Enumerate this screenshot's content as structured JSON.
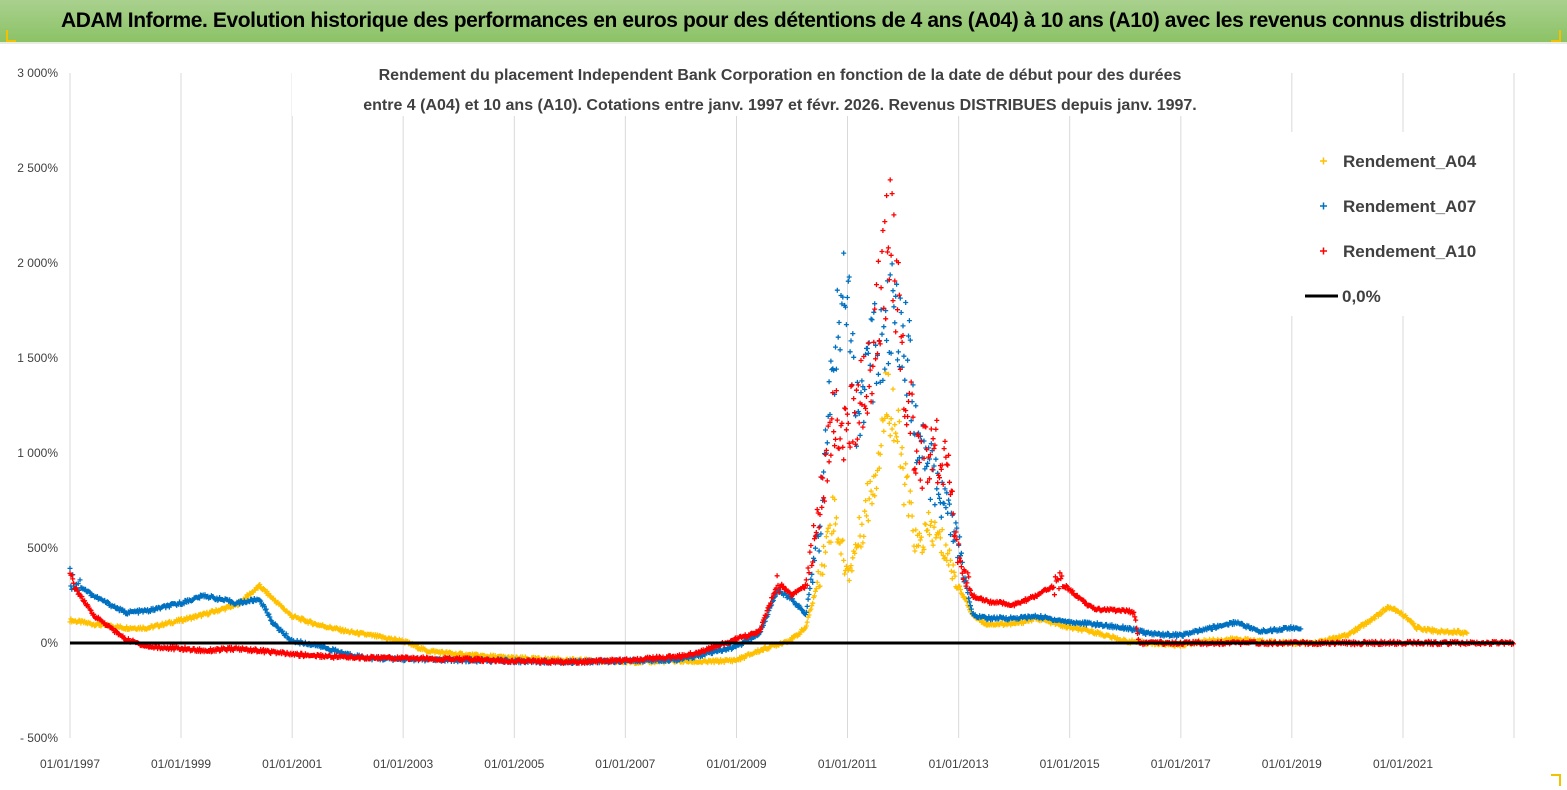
{
  "header": {
    "banner": "ADAM Informe. Evolution historique des performances en euros pour des détentions de 4 ans (A04) à 10 ans (A10) avec les revenus connus distribués"
  },
  "chart_data": {
    "type": "scatter",
    "title_lines": [
      "Rendement du placement Independent Bank Corporation en fonction de la date de début pour des durées",
      "entre 4 (A04) et 10 ans (A10).  Cotations entre janv. 1997 et févr. 2026. Revenus DISTRIBUES depuis janv. 1997."
    ],
    "x_range": [
      "1997-01-01",
      "2023-01-01"
    ],
    "x_ticks": [
      "01/01/1997",
      "01/01/1999",
      "01/01/2001",
      "01/01/2003",
      "01/01/2005",
      "01/01/2007",
      "01/01/2009",
      "01/01/2011",
      "01/01/2013",
      "01/01/2015",
      "01/01/2017",
      "01/01/2019",
      "01/01/2021"
    ],
    "ylim": [
      -500,
      3000
    ],
    "y_ticks": [
      -500,
      0,
      500,
      1000,
      1500,
      2000,
      2500,
      3000
    ],
    "y_tick_labels": [
      "- 500%",
      "0%",
      "500%",
      "1 000%",
      "1 500%",
      "2 000%",
      "2 500%",
      "3 000%"
    ],
    "grid": "vertical",
    "legend_position": "top-right",
    "series": [
      {
        "name": "Rendement_A04",
        "color": "#ffc000",
        "marker": "plus",
        "points": [
          [
            "1997-01-01",
            120
          ],
          [
            "1997-06-01",
            100
          ],
          [
            "1998-01-01",
            80
          ],
          [
            "1998-06-01",
            80
          ],
          [
            "1999-01-01",
            120
          ],
          [
            "1999-06-01",
            150
          ],
          [
            "2000-01-01",
            200
          ],
          [
            "2000-06-01",
            300
          ],
          [
            "2000-09-01",
            230
          ],
          [
            "2001-01-01",
            140
          ],
          [
            "2001-06-01",
            100
          ],
          [
            "2002-01-01",
            60
          ],
          [
            "2002-06-01",
            40
          ],
          [
            "2003-01-01",
            10
          ],
          [
            "2003-06-01",
            -40
          ],
          [
            "2004-01-01",
            -60
          ],
          [
            "2005-01-01",
            -80
          ],
          [
            "2006-01-01",
            -90
          ],
          [
            "2007-01-01",
            -100
          ],
          [
            "2008-01-01",
            -95
          ],
          [
            "2008-06-01",
            -100
          ],
          [
            "2009-01-01",
            -90
          ],
          [
            "2009-06-01",
            -40
          ],
          [
            "2010-01-01",
            20
          ],
          [
            "2010-04-01",
            80
          ],
          [
            "2010-07-01",
            350
          ],
          [
            "2010-10-01",
            700
          ],
          [
            "2011-01-01",
            350
          ],
          [
            "2011-04-01",
            600
          ],
          [
            "2011-07-01",
            900
          ],
          [
            "2011-10-01",
            1350
          ],
          [
            "2012-01-01",
            900
          ],
          [
            "2012-04-01",
            500
          ],
          [
            "2012-07-01",
            600
          ],
          [
            "2012-10-01",
            500
          ],
          [
            "2013-01-01",
            300
          ],
          [
            "2013-04-01",
            150
          ],
          [
            "2013-07-01",
            100
          ],
          [
            "2014-01-01",
            100
          ],
          [
            "2014-06-01",
            130
          ],
          [
            "2015-01-01",
            80
          ],
          [
            "2015-06-01",
            60
          ],
          [
            "2016-01-01",
            10
          ],
          [
            "2016-06-01",
            0
          ],
          [
            "2017-01-01",
            -10
          ],
          [
            "2017-06-01",
            10
          ],
          [
            "2018-01-01",
            20
          ],
          [
            "2018-06-01",
            10
          ],
          [
            "2019-01-01",
            0
          ],
          [
            "2019-06-01",
            0
          ],
          [
            "2020-01-01",
            40
          ],
          [
            "2020-06-01",
            120
          ],
          [
            "2020-10-01",
            190
          ],
          [
            "2021-01-01",
            150
          ],
          [
            "2021-04-01",
            80
          ],
          [
            "2021-09-01",
            60
          ],
          [
            "2022-01-01",
            60
          ],
          [
            "2022-03-01",
            50
          ]
        ]
      },
      {
        "name": "Rendement_A07",
        "color": "#0070c0",
        "marker": "plus",
        "points": [
          [
            "1997-01-01",
            340
          ],
          [
            "1997-06-01",
            250
          ],
          [
            "1998-01-01",
            160
          ],
          [
            "1998-06-01",
            170
          ],
          [
            "1999-01-01",
            210
          ],
          [
            "1999-06-01",
            250
          ],
          [
            "2000-01-01",
            210
          ],
          [
            "2000-06-01",
            230
          ],
          [
            "2000-09-01",
            100
          ],
          [
            "2001-01-01",
            10
          ],
          [
            "2001-06-01",
            -10
          ],
          [
            "2002-01-01",
            -60
          ],
          [
            "2002-06-01",
            -80
          ],
          [
            "2003-01-01",
            -85
          ],
          [
            "2004-01-01",
            -90
          ],
          [
            "2005-01-01",
            -95
          ],
          [
            "2006-01-01",
            -100
          ],
          [
            "2007-01-01",
            -95
          ],
          [
            "2008-01-01",
            -85
          ],
          [
            "2008-06-01",
            -60
          ],
          [
            "2009-01-01",
            -20
          ],
          [
            "2009-06-01",
            50
          ],
          [
            "2009-10-01",
            280
          ],
          [
            "2010-01-01",
            230
          ],
          [
            "2010-04-01",
            150
          ],
          [
            "2010-07-01",
            600
          ],
          [
            "2010-10-01",
            1500
          ],
          [
            "2011-01-01",
            2000
          ],
          [
            "2011-03-01",
            1200
          ],
          [
            "2011-07-01",
            1550
          ],
          [
            "2011-10-01",
            1700
          ],
          [
            "2012-01-01",
            1750
          ],
          [
            "2012-04-01",
            1100
          ],
          [
            "2012-07-01",
            900
          ],
          [
            "2012-10-01",
            750
          ],
          [
            "2013-01-01",
            500
          ],
          [
            "2013-04-01",
            150
          ],
          [
            "2013-07-01",
            130
          ],
          [
            "2014-01-01",
            130
          ],
          [
            "2014-06-01",
            140
          ],
          [
            "2015-01-01",
            110
          ],
          [
            "2015-06-01",
            100
          ],
          [
            "2016-01-01",
            80
          ],
          [
            "2016-06-01",
            50
          ],
          [
            "2017-01-01",
            40
          ],
          [
            "2017-06-01",
            70
          ],
          [
            "2018-01-01",
            110
          ],
          [
            "2018-06-01",
            60
          ],
          [
            "2019-01-01",
            80
          ],
          [
            "2019-03-01",
            70
          ]
        ]
      },
      {
        "name": "Rendement_A10",
        "color": "#ff0000",
        "marker": "plus",
        "points": [
          [
            "1997-01-01",
            330
          ],
          [
            "1997-06-01",
            150
          ],
          [
            "1998-01-01",
            20
          ],
          [
            "1998-06-01",
            -20
          ],
          [
            "1999-01-01",
            -30
          ],
          [
            "1999-06-01",
            -40
          ],
          [
            "2000-01-01",
            -30
          ],
          [
            "2000-06-01",
            -40
          ],
          [
            "2001-01-01",
            -60
          ],
          [
            "2002-01-01",
            -75
          ],
          [
            "2003-01-01",
            -80
          ],
          [
            "2004-01-01",
            -85
          ],
          [
            "2005-01-01",
            -95
          ],
          [
            "2006-01-01",
            -100
          ],
          [
            "2007-01-01",
            -90
          ],
          [
            "2008-01-01",
            -70
          ],
          [
            "2008-06-01",
            -40
          ],
          [
            "2009-01-01",
            20
          ],
          [
            "2009-06-01",
            60
          ],
          [
            "2009-10-01",
            320
          ],
          [
            "2010-01-01",
            250
          ],
          [
            "2010-04-01",
            300
          ],
          [
            "2010-07-01",
            700
          ],
          [
            "2010-10-01",
            1200
          ],
          [
            "2011-01-01",
            1100
          ],
          [
            "2011-04-01",
            1300
          ],
          [
            "2011-07-01",
            1600
          ],
          [
            "2011-10-01",
            2200
          ],
          [
            "2012-01-01",
            1500
          ],
          [
            "2012-04-01",
            950
          ],
          [
            "2012-07-01",
            1000
          ],
          [
            "2012-10-01",
            1000
          ],
          [
            "2013-01-01",
            450
          ],
          [
            "2013-04-01",
            250
          ],
          [
            "2013-07-01",
            220
          ],
          [
            "2014-01-01",
            200
          ],
          [
            "2014-06-01",
            250
          ],
          [
            "2014-11-01",
            320
          ],
          [
            "2015-06-01",
            180
          ],
          [
            "2016-01-01",
            170
          ],
          [
            "2016-03-01",
            160
          ],
          [
            "2016-04-01",
            0
          ],
          [
            "2017-01-01",
            0
          ],
          [
            "2018-01-01",
            0
          ],
          [
            "2019-01-01",
            0
          ],
          [
            "2020-01-01",
            0
          ],
          [
            "2021-01-01",
            0
          ],
          [
            "2022-01-01",
            0
          ],
          [
            "2023-01-01",
            0
          ]
        ]
      }
    ],
    "reference_line": {
      "name": "0,0%",
      "value": 0,
      "color": "#000000"
    }
  }
}
